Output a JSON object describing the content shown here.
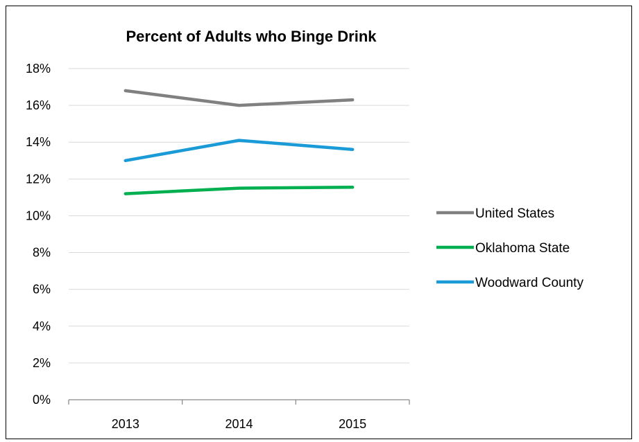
{
  "chart_data": {
    "type": "line",
    "title": "Percent of Adults who Binge Drink",
    "xlabel": "",
    "ylabel": "",
    "categories": [
      "2013",
      "2014",
      "2015"
    ],
    "ylim": [
      0,
      18
    ],
    "yticks": [
      0,
      2,
      4,
      6,
      8,
      10,
      12,
      14,
      16,
      18
    ],
    "y_tick_suffix": "%",
    "grid": true,
    "legend_position": "right",
    "series": [
      {
        "name": "United States",
        "values": [
          16.8,
          16.0,
          16.3
        ],
        "color": "#808080"
      },
      {
        "name": "Oklahoma State",
        "values": [
          11.2,
          11.5,
          11.55
        ],
        "color": "#00b050"
      },
      {
        "name": "Woodward County",
        "values": [
          13.0,
          14.1,
          13.6
        ],
        "color": "#1a9ad6"
      }
    ]
  }
}
